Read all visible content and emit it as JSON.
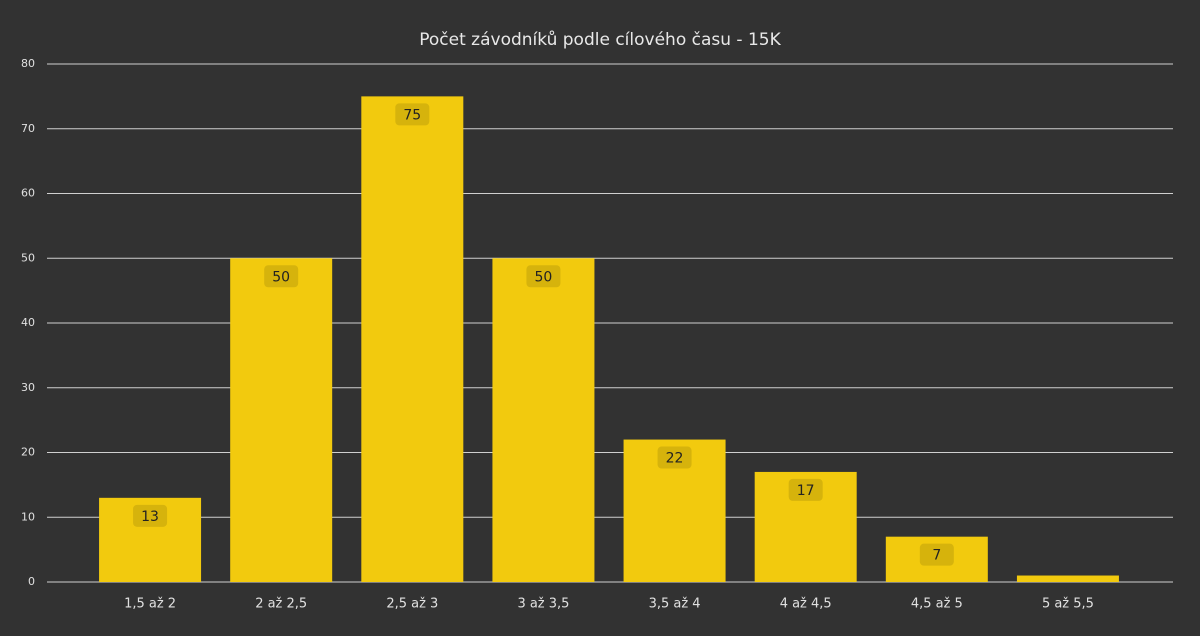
{
  "chart_data": {
    "type": "bar",
    "title": "Počet závodníků podle cílového času - 15K",
    "categories": [
      "1,5 až 2",
      "2 až 2,5",
      "2,5 až 3",
      "3 až 3,5",
      "3,5 až 4",
      "4 až 4,5",
      "4,5 až 5",
      "5 až 5,5"
    ],
    "values": [
      13,
      50,
      75,
      50,
      22,
      17,
      7,
      1
    ],
    "color": "#f2ca0e",
    "ylim": [
      0,
      80
    ],
    "yticks": [
      0,
      10,
      20,
      30,
      40,
      50,
      60,
      70,
      80
    ],
    "grid": true
  }
}
